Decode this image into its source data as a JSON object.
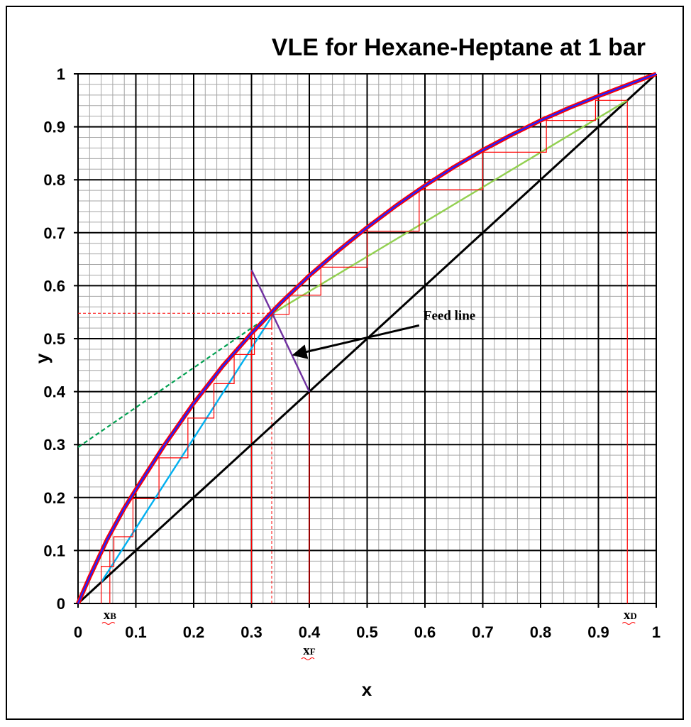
{
  "chart_data": {
    "type": "line",
    "title": "VLE for Hexane-Heptane at 1 bar",
    "xlabel": "x",
    "ylabel": "y",
    "xlim": [
      0,
      1
    ],
    "ylim": [
      0,
      1
    ],
    "x_ticks": [
      "0",
      "0.1",
      "0.2",
      "0.3",
      "0.4",
      "0.5",
      "0.6",
      "0.7",
      "0.8",
      "0.9",
      "1"
    ],
    "y_ticks": [
      "0",
      "0.1",
      "0.2",
      "0.3",
      "0.4",
      "0.5",
      "0.6",
      "0.7",
      "0.8",
      "0.9",
      "1"
    ],
    "grid": true,
    "minor_grid_step": 0.02,
    "colors": {
      "equilibrium_outer": "#ff0000",
      "equilibrium_inner": "#2222ff",
      "diagonal": "#000000",
      "rectifying": "#92d050",
      "rectifying_extension": "#00a050",
      "stripping": "#00b0f0",
      "feed_line": "#7030a0",
      "stages": "#ff0000",
      "guides": "#ff0000",
      "major_grid": "#000000",
      "minor_grid": "#a6a6a6"
    },
    "series": [
      {
        "key": "equilibrium",
        "x": [
          0,
          0.02,
          0.05,
          0.08,
          0.1,
          0.15,
          0.2,
          0.25,
          0.3,
          0.35,
          0.4,
          0.45,
          0.5,
          0.55,
          0.6,
          0.65,
          0.7,
          0.75,
          0.8,
          0.85,
          0.9,
          0.95,
          1
        ],
        "y": [
          0,
          0.05,
          0.12,
          0.18,
          0.215,
          0.3,
          0.378,
          0.448,
          0.51,
          0.567,
          0.619,
          0.666,
          0.71,
          0.751,
          0.789,
          0.824,
          0.856,
          0.885,
          0.912,
          0.936,
          0.958,
          0.979,
          1
        ]
      },
      {
        "key": "diagonal",
        "x": [
          0,
          1
        ],
        "y": [
          0,
          1
        ]
      },
      {
        "key": "rectifying",
        "x": [
          0.34,
          0.95
        ],
        "y": [
          0.55,
          0.95
        ]
      },
      {
        "key": "rectifying_extension",
        "x": [
          0,
          0.34
        ],
        "y": [
          0.295,
          0.55
        ]
      },
      {
        "key": "stripping",
        "x": [
          0.04,
          0.34
        ],
        "y": [
          0.04,
          0.55
        ]
      },
      {
        "key": "feed_line",
        "x": [
          0.3,
          0.4
        ],
        "y": [
          0.63,
          0.4
        ]
      }
    ],
    "stages": [
      [
        0.95,
        0.95
      ],
      [
        0.895,
        0.95
      ],
      [
        0.895,
        0.912
      ],
      [
        0.81,
        0.912
      ],
      [
        0.81,
        0.852
      ],
      [
        0.7,
        0.852
      ],
      [
        0.7,
        0.781
      ],
      [
        0.59,
        0.781
      ],
      [
        0.59,
        0.703
      ],
      [
        0.5,
        0.703
      ],
      [
        0.5,
        0.635
      ],
      [
        0.42,
        0.635
      ],
      [
        0.42,
        0.582
      ],
      [
        0.365,
        0.582
      ],
      [
        0.365,
        0.546
      ],
      [
        0.335,
        0.546
      ],
      [
        0.335,
        0.519
      ],
      [
        0.305,
        0.519
      ],
      [
        0.305,
        0.47
      ],
      [
        0.27,
        0.47
      ],
      [
        0.27,
        0.415
      ],
      [
        0.235,
        0.415
      ],
      [
        0.235,
        0.35
      ],
      [
        0.19,
        0.35
      ],
      [
        0.19,
        0.275
      ],
      [
        0.14,
        0.275
      ],
      [
        0.14,
        0.198
      ],
      [
        0.095,
        0.198
      ],
      [
        0.095,
        0.126
      ],
      [
        0.062,
        0.126
      ],
      [
        0.062,
        0.07
      ],
      [
        0.04,
        0.07
      ],
      [
        0.04,
        0
      ]
    ],
    "guides": [
      {
        "x": [
          0,
          0.335
        ],
        "y": [
          0.548,
          0.548
        ],
        "dashed": true
      },
      {
        "x": [
          0.335,
          0.335
        ],
        "y": [
          0,
          0.548
        ],
        "dashed": true
      },
      {
        "x": [
          0.3,
          0.3
        ],
        "y": [
          0,
          0.63
        ],
        "dashed": false
      },
      {
        "x": [
          0.4,
          0.4
        ],
        "y": [
          0,
          0.4
        ],
        "dashed": false
      },
      {
        "x": [
          0.95,
          0.95
        ],
        "y": [
          0,
          0.95
        ],
        "dashed": false
      },
      {
        "x": [
          0.055,
          0.055
        ],
        "y": [
          0,
          0.1
        ],
        "dashed": false
      }
    ],
    "annotations": {
      "feed_line_label": "Feed line",
      "feed_arrow_from": [
        0.59,
        0.525
      ],
      "feed_arrow_to": [
        0.375,
        0.47
      ],
      "x_bottoms": {
        "base": "x",
        "sub": "B",
        "x": 0.055
      },
      "x_distillate": {
        "base": "x",
        "sub": "D",
        "x": 0.955
      },
      "x_feed": {
        "base": "x",
        "sub": "F",
        "x": 0.4
      }
    }
  }
}
